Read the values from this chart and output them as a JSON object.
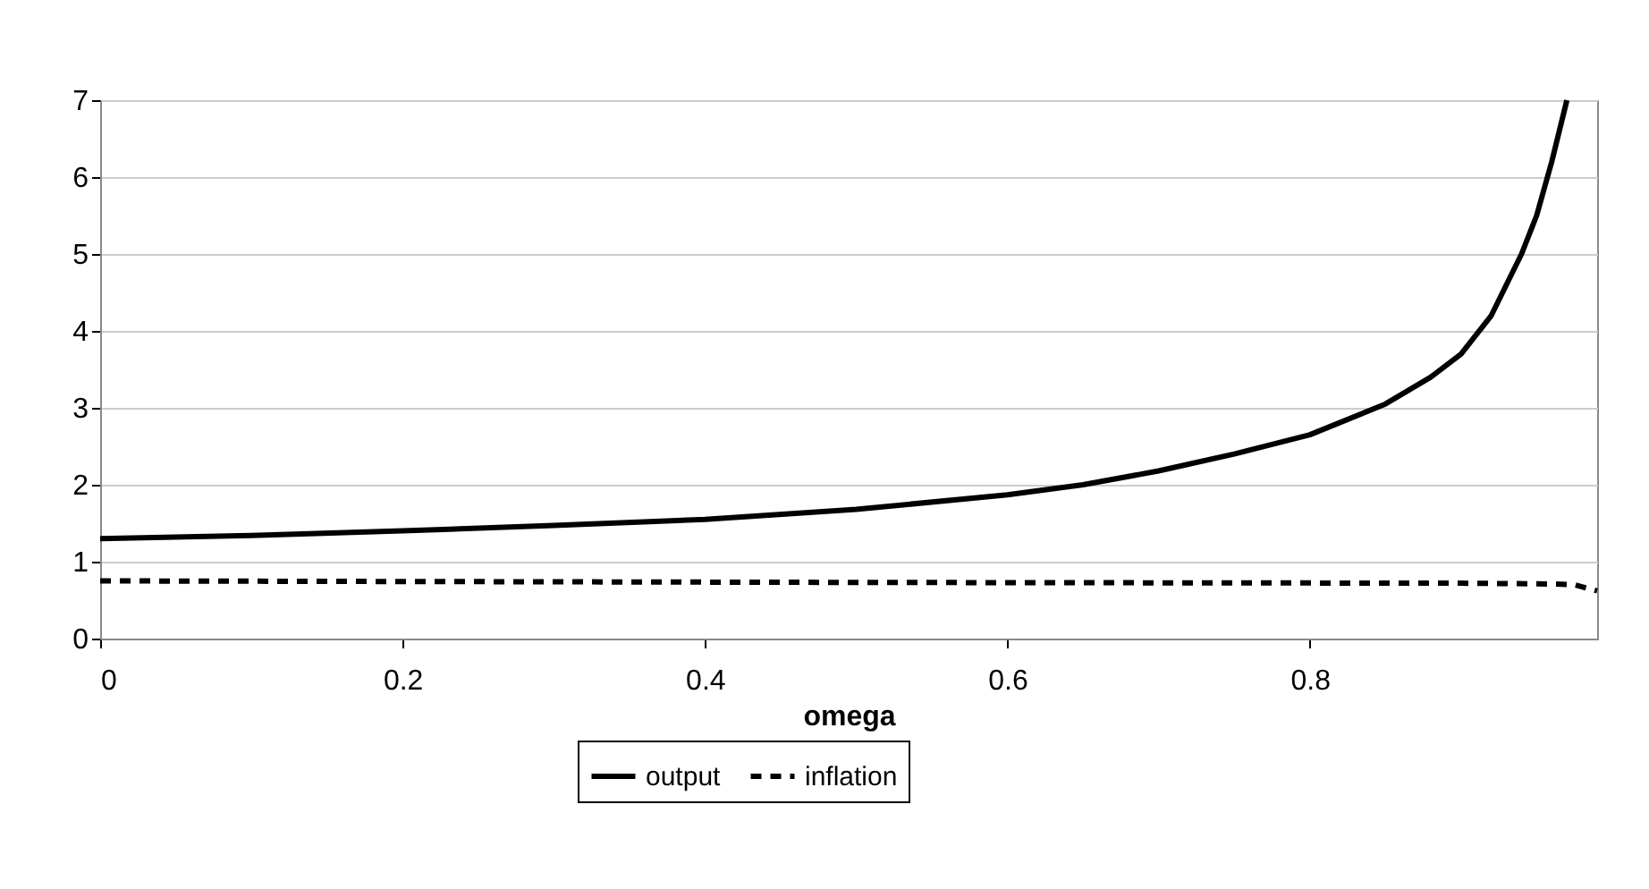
{
  "chart_data": {
    "type": "line",
    "xlabel": "omega",
    "xlim": [
      0,
      0.99
    ],
    "xticks": [
      0,
      0.2,
      0.4,
      0.6,
      0.8
    ],
    "ylim": [
      0,
      7
    ],
    "yticks": [
      0,
      1,
      2,
      3,
      4,
      5,
      6,
      7
    ],
    "grid": "y",
    "legend": "bottom",
    "marker": "none",
    "series": [
      {
        "name": "output",
        "color": "#000000",
        "line_style": "solid",
        "x": [
          0,
          0.1,
          0.2,
          0.3,
          0.4,
          0.5,
          0.6,
          0.65,
          0.7,
          0.75,
          0.8,
          0.85,
          0.88,
          0.9,
          0.92,
          0.94,
          0.95,
          0.96,
          0.97
        ],
        "values": [
          1.3,
          1.34,
          1.4,
          1.47,
          1.55,
          1.68,
          1.87,
          2.0,
          2.18,
          2.4,
          2.65,
          3.05,
          3.4,
          3.7,
          4.2,
          5.0,
          5.5,
          6.2,
          7.0
        ]
      },
      {
        "name": "inflation",
        "color": "#000000",
        "line_style": "dashed",
        "x": [
          0,
          0.5,
          0.9,
          0.96,
          0.975,
          0.99
        ],
        "values": [
          0.75,
          0.73,
          0.72,
          0.71,
          0.7,
          0.62
        ]
      }
    ]
  }
}
